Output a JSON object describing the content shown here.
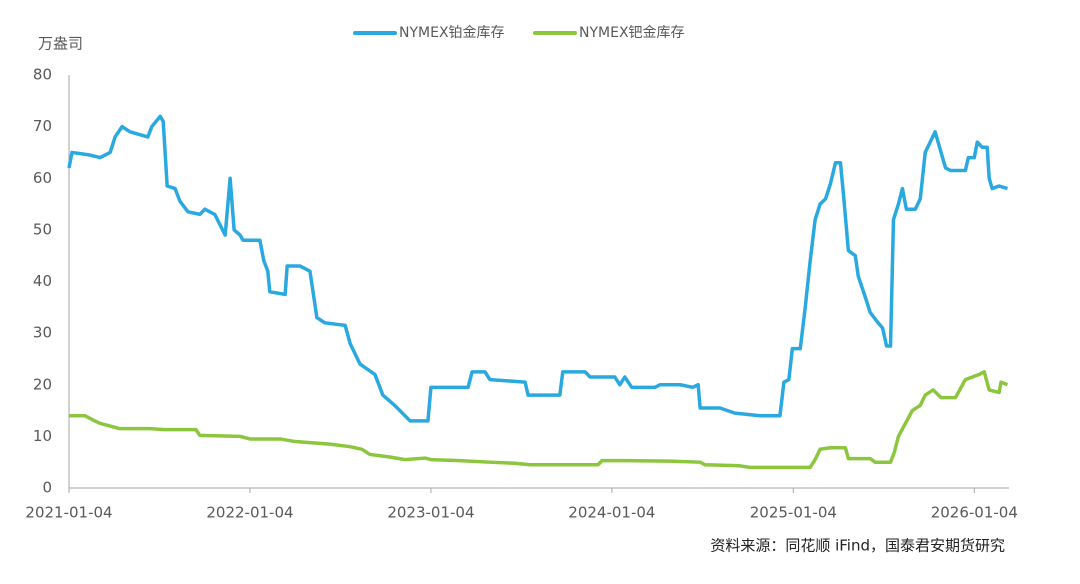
{
  "chart_data": {
    "type": "line",
    "ylabel": "万盎司",
    "source": "资料来源：同花顺 iFind，国泰君安期货研究",
    "xlim": [
      "2021-01-04",
      "2026-03-15"
    ],
    "xticks": [
      "2021-01-04",
      "2022-01-04",
      "2023-01-04",
      "2024-01-04",
      "2025-01-04",
      "2026-01-04"
    ],
    "ylim": [
      0,
      80
    ],
    "yticks": [
      0,
      10,
      20,
      30,
      40,
      50,
      60,
      70,
      80
    ],
    "grid": false,
    "legend": "top",
    "series": [
      {
        "name": "NYMEX铂金库存",
        "color": "#2aa9e0",
        "x": [
          "2021-01-04",
          "2021-01-10",
          "2021-02-15",
          "2021-03-08",
          "2021-03-28",
          "2021-04-07",
          "2021-04-21",
          "2021-05-07",
          "2021-06-12",
          "2021-06-20",
          "2021-07-07",
          "2021-07-13",
          "2021-07-21",
          "2021-08-06",
          "2021-08-16",
          "2021-09-01",
          "2021-09-25",
          "2021-10-05",
          "2021-10-25",
          "2021-11-15",
          "2021-11-25",
          "2021-12-03",
          "2021-12-15",
          "2021-12-21",
          "2022-01-24",
          "2022-02-01",
          "2022-02-09",
          "2022-02-13",
          "2022-03-16",
          "2022-03-20",
          "2022-04-15",
          "2022-05-05",
          "2022-05-19",
          "2022-06-04",
          "2022-07-15",
          "2022-07-25",
          "2022-08-14",
          "2022-09-13",
          "2022-09-29",
          "2022-10-23",
          "2022-11-23",
          "2022-12-29",
          "2023-01-04",
          "2023-03-20",
          "2023-03-28",
          "2023-04-23",
          "2023-05-03",
          "2023-07-13",
          "2023-07-19",
          "2023-09-21",
          "2023-09-27",
          "2023-11-11",
          "2023-11-21",
          "2024-01-10",
          "2024-01-20",
          "2024-01-30",
          "2024-02-13",
          "2024-03-31",
          "2024-04-10",
          "2024-05-21",
          "2024-06-15",
          "2024-06-26",
          "2024-06-30",
          "2024-08-09",
          "2024-09-08",
          "2024-10-29",
          "2024-12-08",
          "2024-12-16",
          "2024-12-26",
          "2025-01-02",
          "2025-01-18",
          "2025-01-28",
          "2025-02-07",
          "2025-02-17",
          "2025-02-27",
          "2025-03-10",
          "2025-03-20",
          "2025-03-30",
          "2025-04-09",
          "2025-04-15",
          "2025-04-25",
          "2025-05-09",
          "2025-05-15",
          "2025-05-29",
          "2025-06-08",
          "2025-06-24",
          "2025-07-03",
          "2025-07-11",
          "2025-07-19",
          "2025-07-25",
          "2025-08-04",
          "2025-08-12",
          "2025-08-20",
          "2025-09-07",
          "2025-09-17",
          "2025-09-27",
          "2025-10-07",
          "2025-10-17",
          "2025-10-23",
          "2025-11-07",
          "2025-11-17",
          "2025-12-17",
          "2025-12-23",
          "2026-01-04",
          "2026-01-10",
          "2026-01-20",
          "2026-01-30",
          "2026-02-03",
          "2026-02-09",
          "2026-02-23",
          "2026-03-12"
        ],
        "values": [
          62,
          65,
          64.5,
          64,
          65,
          68,
          70,
          69,
          68,
          70,
          72,
          71,
          58.5,
          58,
          55.5,
          53.5,
          53,
          54,
          53,
          49,
          60,
          50,
          49,
          48,
          48,
          44,
          42,
          38,
          37.5,
          43,
          43,
          42,
          33,
          32,
          31.5,
          28,
          24,
          22,
          18,
          16,
          13,
          13,
          19.5,
          19.5,
          22.5,
          22.5,
          21,
          20.5,
          18,
          18,
          22.5,
          22.5,
          21.5,
          21.5,
          20,
          21.5,
          19.5,
          19.5,
          20,
          20,
          19.5,
          20,
          15.5,
          15.5,
          14.5,
          14,
          14,
          20.5,
          21,
          27,
          27,
          35,
          44,
          52,
          55,
          56,
          59,
          63,
          63,
          57,
          46,
          45,
          41,
          37,
          34,
          32,
          31,
          27.5,
          27.5,
          52,
          55,
          58,
          54,
          54,
          56,
          65,
          67,
          69,
          67,
          62,
          61.5,
          61.5,
          64,
          64,
          67,
          66,
          66,
          60,
          58,
          58.5,
          58
        ]
      },
      {
        "name": "NYMEX钯金库存",
        "color": "#8cc63e",
        "x": [
          "2021-01-04",
          "2021-02-05",
          "2021-02-25",
          "2021-03-08",
          "2021-04-17",
          "2021-06-16",
          "2021-07-17",
          "2021-09-17",
          "2021-09-25",
          "2021-12-15",
          "2022-01-04",
          "2022-03-06",
          "2022-04-05",
          "2022-06-14",
          "2022-07-25",
          "2022-08-18",
          "2022-09-03",
          "2022-10-13",
          "2022-11-13",
          "2022-12-23",
          "2023-01-04",
          "2023-03-03",
          "2023-05-03",
          "2023-06-22",
          "2023-07-23",
          "2023-12-07",
          "2023-12-15",
          "2024-02-09",
          "2024-04-30",
          "2024-06-30",
          "2024-07-10",
          "2024-09-18",
          "2024-10-08",
          "2025-01-18",
          "2025-02-07",
          "2025-02-17",
          "2025-02-27",
          "2025-03-20",
          "2025-04-19",
          "2025-04-25",
          "2025-06-08",
          "2025-06-18",
          "2025-07-19",
          "2025-07-27",
          "2025-08-04",
          "2025-08-18",
          "2025-09-01",
          "2025-09-17",
          "2025-09-27",
          "2025-10-13",
          "2025-10-29",
          "2025-11-27",
          "2025-12-17",
          "2026-01-14",
          "2026-01-24",
          "2026-02-03",
          "2026-02-23",
          "2026-02-27",
          "2026-03-12"
        ],
        "values": [
          14,
          14,
          13,
          12.5,
          11.5,
          11.5,
          11.3,
          11.3,
          10.2,
          10,
          9.5,
          9.5,
          9,
          8.5,
          8,
          7.5,
          6.5,
          6,
          5.5,
          5.8,
          5.5,
          5.3,
          5,
          4.8,
          4.5,
          4.5,
          5.3,
          5.3,
          5.2,
          5,
          4.5,
          4.3,
          4,
          4,
          4,
          5.5,
          7.5,
          7.8,
          7.8,
          5.7,
          5.7,
          5,
          5,
          7,
          10,
          12.5,
          15,
          16,
          18,
          19,
          17.5,
          17.5,
          21,
          22,
          22.5,
          19,
          18.5,
          20.5,
          20
        ]
      }
    ]
  }
}
